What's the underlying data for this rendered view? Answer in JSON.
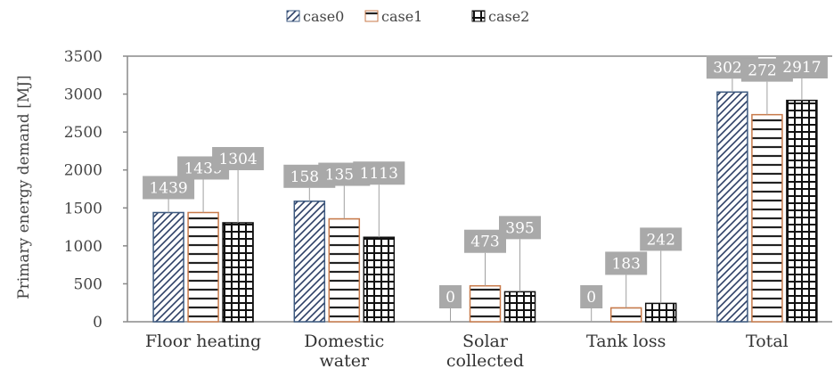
{
  "chart_data": {
    "type": "bar",
    "title": "",
    "xlabel": "",
    "ylabel": "Primary energy demand  [MJ]",
    "ylim": [
      0,
      3500
    ],
    "yticks": [
      0,
      500,
      1000,
      1500,
      2000,
      2500,
      3000,
      3500
    ],
    "grid": false,
    "legend_position": "top-center",
    "categories": [
      "Floor heating",
      "Domestic water",
      "Solar collected",
      "Tank loss",
      "Total"
    ],
    "series": [
      {
        "name": "case0",
        "values": [
          1439,
          1588,
          0,
          0,
          3027
        ],
        "color": "#3d5a80",
        "pattern": "diagonal-hatch"
      },
      {
        "name": "case1",
        "values": [
          1439,
          1356,
          473,
          183,
          2729
        ],
        "color": "#c87a4a",
        "pattern": "horizontal-lines"
      },
      {
        "name": "case2",
        "values": [
          1304,
          1113,
          395,
          242,
          2917
        ],
        "color": "#111111",
        "pattern": "grid"
      }
    ]
  }
}
